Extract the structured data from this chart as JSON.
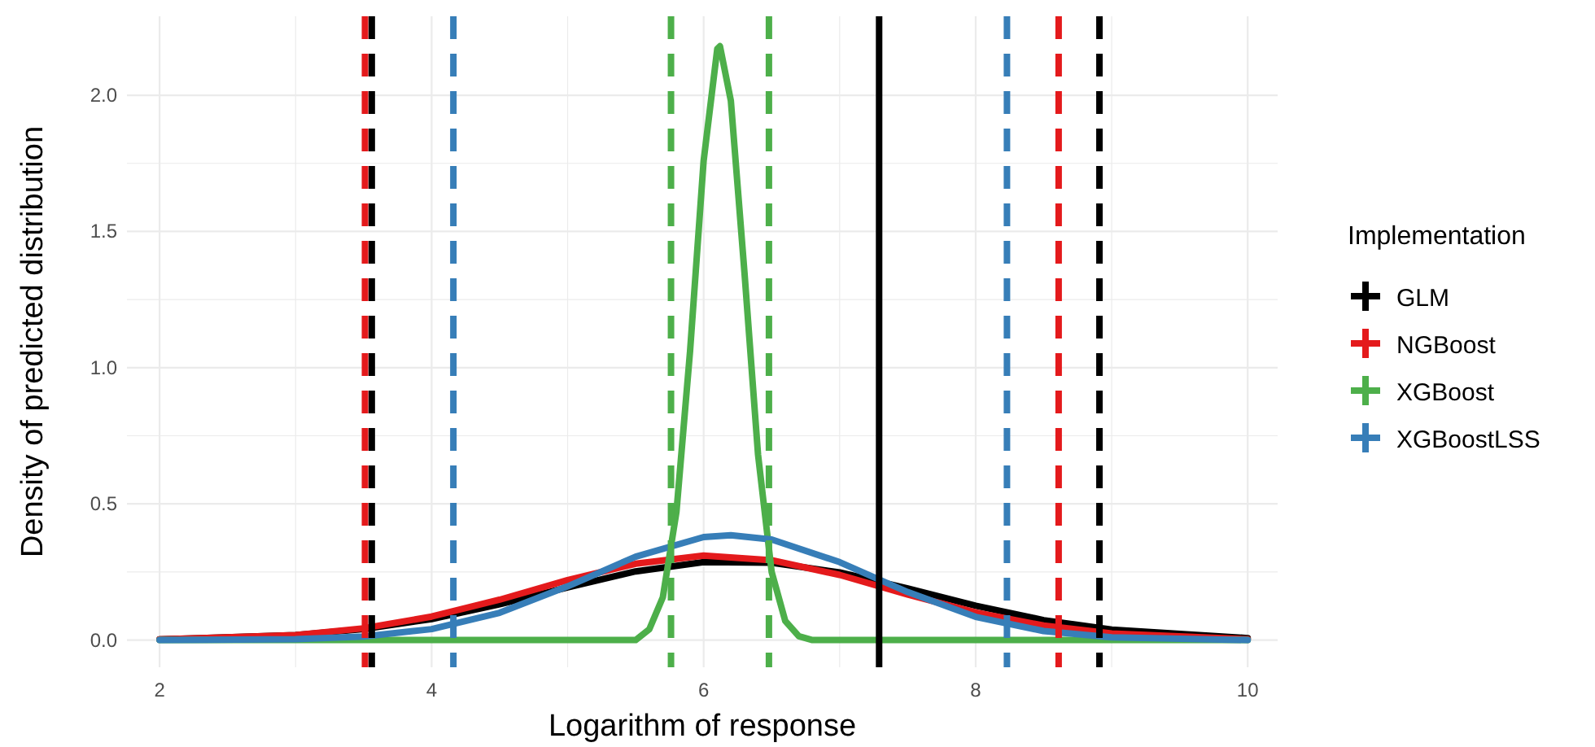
{
  "chart_data": {
    "type": "line",
    "xlabel": "Logarithm of response",
    "ylabel": "Density of predicted distribution",
    "legend_title": "Implementation",
    "legend": "right",
    "grid": true,
    "line_style": "solid",
    "marker": "none",
    "xlim": [
      1.76,
      10.22
    ],
    "ylim": [
      -0.1,
      2.29
    ],
    "xticks": [
      2,
      {
        "value": 3,
        "label": null
      },
      4,
      {
        "value": 5,
        "label": null
      },
      6,
      {
        "value": 7,
        "label": null
      },
      8,
      {
        "value": 9,
        "label": null
      },
      10
    ],
    "yticks": [
      {
        "value": 0,
        "label": "0.0"
      },
      {
        "value": 0.25,
        "label": null
      },
      {
        "value": 0.5,
        "label": "0.5"
      },
      {
        "value": 0.75,
        "label": null
      },
      {
        "value": 1,
        "label": "1.0"
      },
      {
        "value": 1.25,
        "label": null
      },
      {
        "value": 1.5,
        "label": "1.5"
      },
      {
        "value": 1.75,
        "label": null
      },
      {
        "value": 2,
        "label": "2.0"
      }
    ],
    "series": [
      {
        "name": "GLM",
        "color": "#000000",
        "x": [
          2,
          3,
          3.5,
          4,
          4.5,
          5,
          5.5,
          6,
          6.5,
          7,
          7.5,
          8,
          8.5,
          9,
          10
        ],
        "values": [
          0.002,
          0.018,
          0.04,
          0.077,
          0.131,
          0.193,
          0.252,
          0.286,
          0.284,
          0.248,
          0.189,
          0.126,
          0.073,
          0.038,
          0.007
        ]
      },
      {
        "name": "NGBoost",
        "color": "#e41a1c",
        "x": [
          2,
          3,
          3.5,
          4,
          4.5,
          5,
          5.5,
          6,
          6.5,
          7,
          7.5,
          8,
          8.5,
          9,
          10
        ],
        "values": [
          0.002,
          0.018,
          0.043,
          0.086,
          0.148,
          0.22,
          0.28,
          0.31,
          0.293,
          0.239,
          0.167,
          0.101,
          0.053,
          0.024,
          0.003
        ]
      },
      {
        "name": "XGBoost",
        "color": "#4daf4a",
        "x": [
          2,
          5.5,
          5.6,
          5.7,
          5.8,
          5.9,
          6,
          6.1,
          6.12,
          6.2,
          6.3,
          6.4,
          6.5,
          6.6,
          6.7,
          6.8,
          10
        ],
        "values": [
          0,
          0,
          0.039,
          0.157,
          0.47,
          1.06,
          1.76,
          2.17,
          2.18,
          1.98,
          1.35,
          0.68,
          0.25,
          0.07,
          0.014,
          0,
          0
        ]
      },
      {
        "name": "XGBoostLSS",
        "color": "#377eb8",
        "x": [
          2,
          3,
          3.5,
          4,
          4.5,
          5,
          5.5,
          6,
          6.2,
          6.5,
          7,
          7.5,
          8,
          8.5,
          9,
          10
        ],
        "values": [
          0,
          0.003,
          0.013,
          0.04,
          0.1,
          0.197,
          0.306,
          0.378,
          0.385,
          0.369,
          0.286,
          0.176,
          0.085,
          0.033,
          0.01,
          0
        ]
      }
    ],
    "ref_lines": [
      {
        "axis": "x",
        "value": 3.56,
        "color": "#000000",
        "line_style": "dashed"
      },
      {
        "axis": "x",
        "value": 8.91,
        "color": "#000000",
        "line_style": "dashed"
      },
      {
        "axis": "x",
        "value": 3.51,
        "color": "#e41a1c",
        "line_style": "dashed"
      },
      {
        "axis": "x",
        "value": 8.61,
        "color": "#e41a1c",
        "line_style": "dashed"
      },
      {
        "axis": "x",
        "value": 5.76,
        "color": "#4daf4a",
        "line_style": "dashed"
      },
      {
        "axis": "x",
        "value": 6.48,
        "color": "#4daf4a",
        "line_style": "dashed"
      },
      {
        "axis": "x",
        "value": 4.16,
        "color": "#377eb8",
        "line_style": "dashed"
      },
      {
        "axis": "x",
        "value": 8.23,
        "color": "#377eb8",
        "line_style": "dashed"
      },
      {
        "axis": "x",
        "value": 7.29,
        "color": "#000000",
        "line_style": "solid"
      }
    ]
  }
}
